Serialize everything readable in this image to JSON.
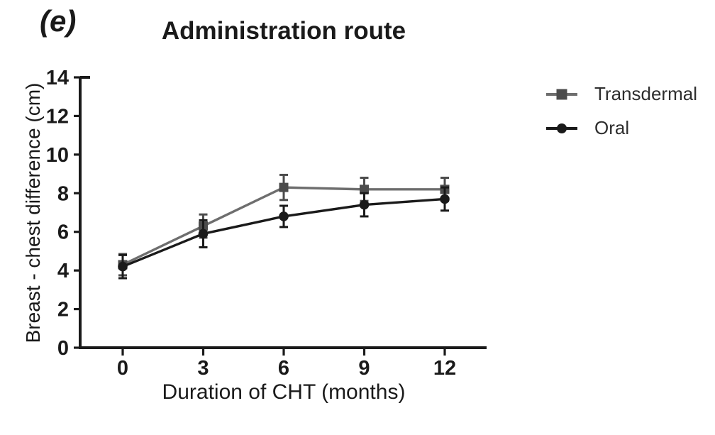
{
  "figure": {
    "panel_label": "(e)",
    "title": "Administration route",
    "x_axis_label": "Duration of CHT (months)",
    "y_axis_label": "Breast - chest difference (cm)"
  },
  "legend": {
    "position": "right",
    "items": [
      {
        "label": "Transdermal",
        "marker": "square",
        "line_color": "#6e6e6e",
        "marker_color": "#4c4c4c"
      },
      {
        "label": "Oral",
        "marker": "circle",
        "line_color": "#1a1a1a",
        "marker_color": "#1a1a1a"
      }
    ]
  },
  "chart_data": {
    "type": "line",
    "title": "Administration route",
    "xlabel": "Duration of CHT (months)",
    "ylabel": "Breast - chest difference (cm)",
    "x": [
      0,
      3,
      6,
      9,
      12
    ],
    "x_ticks": [
      "0",
      "3",
      "6",
      "9",
      "12"
    ],
    "y_ticks": [
      "0",
      "2",
      "4",
      "6",
      "8",
      "10",
      "12",
      "14"
    ],
    "ylim": [
      0,
      14
    ],
    "grid": false,
    "error_bars": true,
    "legend_position": "right",
    "axis_color": "#1a1a1a",
    "series": [
      {
        "name": "Transdermal",
        "marker": "square",
        "line_color": "#6e6e6e",
        "marker_color": "#4c4c4c",
        "values": [
          4.3,
          6.3,
          8.3,
          8.2,
          8.2
        ],
        "errors": [
          0.55,
          0.6,
          0.65,
          0.6,
          0.6
        ]
      },
      {
        "name": "Oral",
        "marker": "circle",
        "line_color": "#1a1a1a",
        "marker_color": "#1a1a1a",
        "values": [
          4.2,
          5.9,
          6.8,
          7.4,
          7.7
        ],
        "errors": [
          0.6,
          0.7,
          0.55,
          0.6,
          0.6
        ]
      }
    ]
  }
}
